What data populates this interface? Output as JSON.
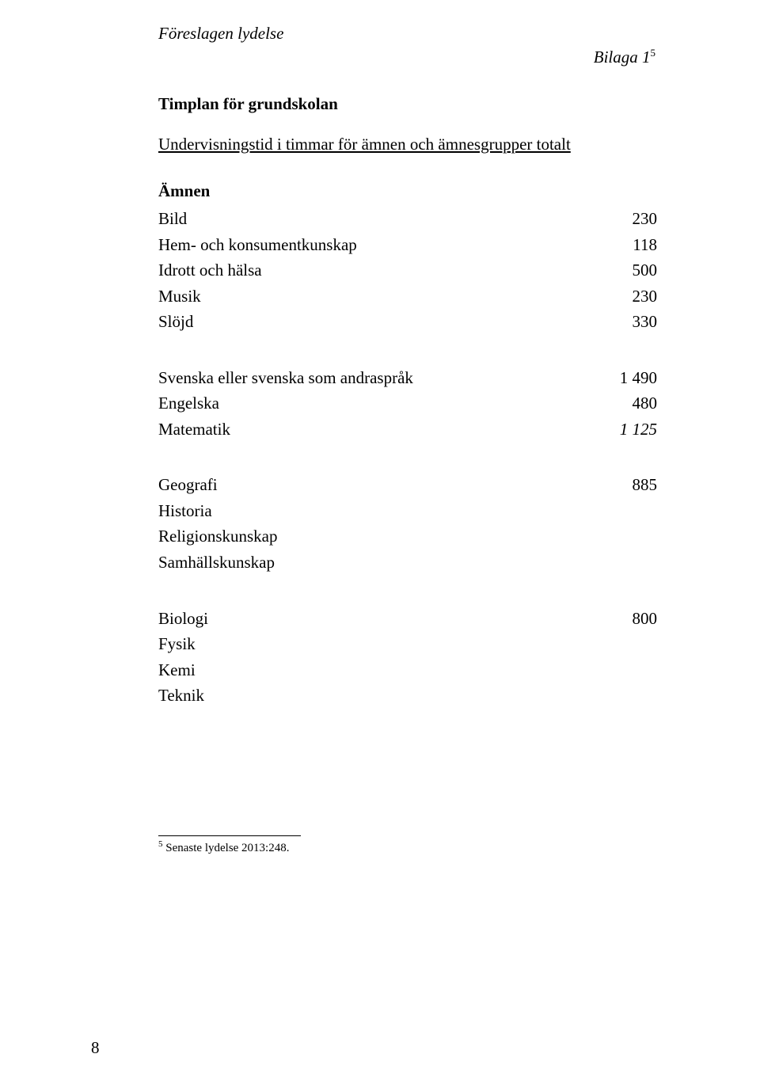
{
  "header": {
    "proposed_wording": "Föreslagen lydelse",
    "bilaga_label": "Bilaga 1",
    "bilaga_super": "5"
  },
  "title": "Timplan för grundskolan",
  "subtitle": "Undervisningstid i timmar för ämnen och ämnesgrupper totalt",
  "section_heading": "Ämnen",
  "group1": [
    {
      "label": "Bild",
      "value": "230"
    },
    {
      "label": "Hem- och konsumentkunskap",
      "value": "118"
    },
    {
      "label": "Idrott och hälsa",
      "value": "500"
    },
    {
      "label": "Musik",
      "value": "230"
    },
    {
      "label": "Slöjd",
      "value": "330"
    }
  ],
  "group2": [
    {
      "label": "Svenska eller svenska som andraspråk",
      "value": "1 490",
      "italic": false
    },
    {
      "label": "Engelska",
      "value": "480",
      "italic": false
    },
    {
      "label": "Matematik",
      "value": "1 125",
      "italic": true
    }
  ],
  "group3": [
    {
      "label": "Geografi",
      "value": "885"
    },
    {
      "label": "Historia",
      "value": ""
    },
    {
      "label": "Religionskunskap",
      "value": ""
    },
    {
      "label": "Samhällskunskap",
      "value": ""
    }
  ],
  "group4": [
    {
      "label": "Biologi",
      "value": "800"
    },
    {
      "label": "Fysik",
      "value": ""
    },
    {
      "label": "Kemi",
      "value": ""
    },
    {
      "label": "Teknik",
      "value": ""
    }
  ],
  "footnote": {
    "marker": "5",
    "text": " Senaste lydelse 2013:248."
  },
  "page_number": "8"
}
